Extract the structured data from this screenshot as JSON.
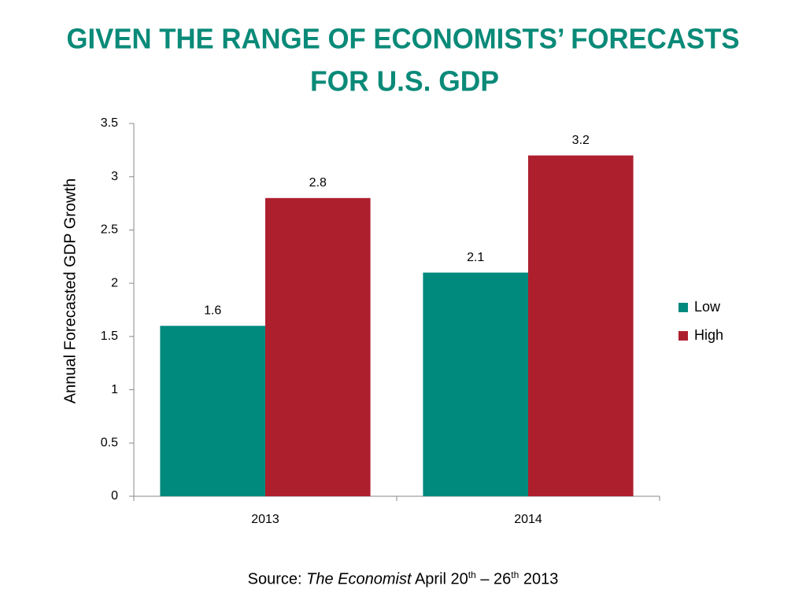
{
  "chart_data": {
    "type": "bar",
    "title": [
      "GIVEN THE RANGE OF ECONOMISTS’ FORECASTS",
      "FOR U.S. GDP"
    ],
    "y_label": "Annual Forecasted GDP Growth",
    "categories": [
      "2013",
      "2014"
    ],
    "series": [
      {
        "name": "Low",
        "color": "#008a7e",
        "values": [
          1.6,
          2.1
        ]
      },
      {
        "name": "High",
        "color": "#ae1f2e",
        "values": [
          2.8,
          3.2
        ]
      }
    ],
    "ylim": [
      0,
      3.5
    ],
    "yticks": [
      0,
      0.5,
      1,
      1.5,
      2,
      2.5,
      3,
      3.5
    ],
    "legend": "right",
    "grid": false
  },
  "source": {
    "label": "Source:",
    "publication": "The Economist",
    "start": "April 20",
    "start_suffix": "th",
    "separator": "–",
    "end": "26",
    "end_suffix": "th",
    "year": "2013"
  }
}
